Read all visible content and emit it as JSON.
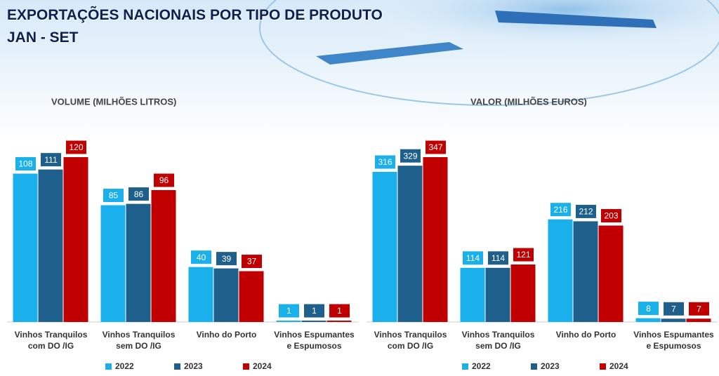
{
  "header": {
    "title": "EXPORTAÇÕES NACIONAIS POR TIPO DE PRODUTO",
    "subtitle": "JAN - SET"
  },
  "chart_data": [
    {
      "type": "bar",
      "title": "VOLUME (MILHÕES LITROS)",
      "categories": [
        "Vinhos Tranquilos com DO /IG",
        "Vinhos Tranquilos sem DO /IG",
        "Vinho do Porto",
        "Vinhos Espumantes e Espumosos"
      ],
      "series": [
        {
          "name": "2022",
          "color": "#1ab0ec",
          "values": [
            108,
            85,
            40,
            1
          ]
        },
        {
          "name": "2023",
          "color": "#1f5f8b",
          "values": [
            111,
            86,
            39,
            1
          ]
        },
        {
          "name": "2024",
          "color": "#c00000",
          "values": [
            120,
            96,
            37,
            1
          ]
        }
      ]
    },
    {
      "type": "bar",
      "title": "VALOR (MILHÕES EUROS)",
      "categories": [
        "Vinhos Tranquilos com DO /IG",
        "Vinhos Tranquilos sem DO /IG",
        "Vinho do Porto",
        "Vinhos Espumantes e Espumosos"
      ],
      "series": [
        {
          "name": "2022",
          "color": "#1ab0ec",
          "values": [
            316,
            114,
            216,
            8
          ]
        },
        {
          "name": "2023",
          "color": "#1f5f8b",
          "values": [
            329,
            114,
            212,
            7
          ]
        },
        {
          "name": "2024",
          "color": "#c00000",
          "values": [
            347,
            121,
            203,
            7
          ]
        }
      ]
    }
  ]
}
